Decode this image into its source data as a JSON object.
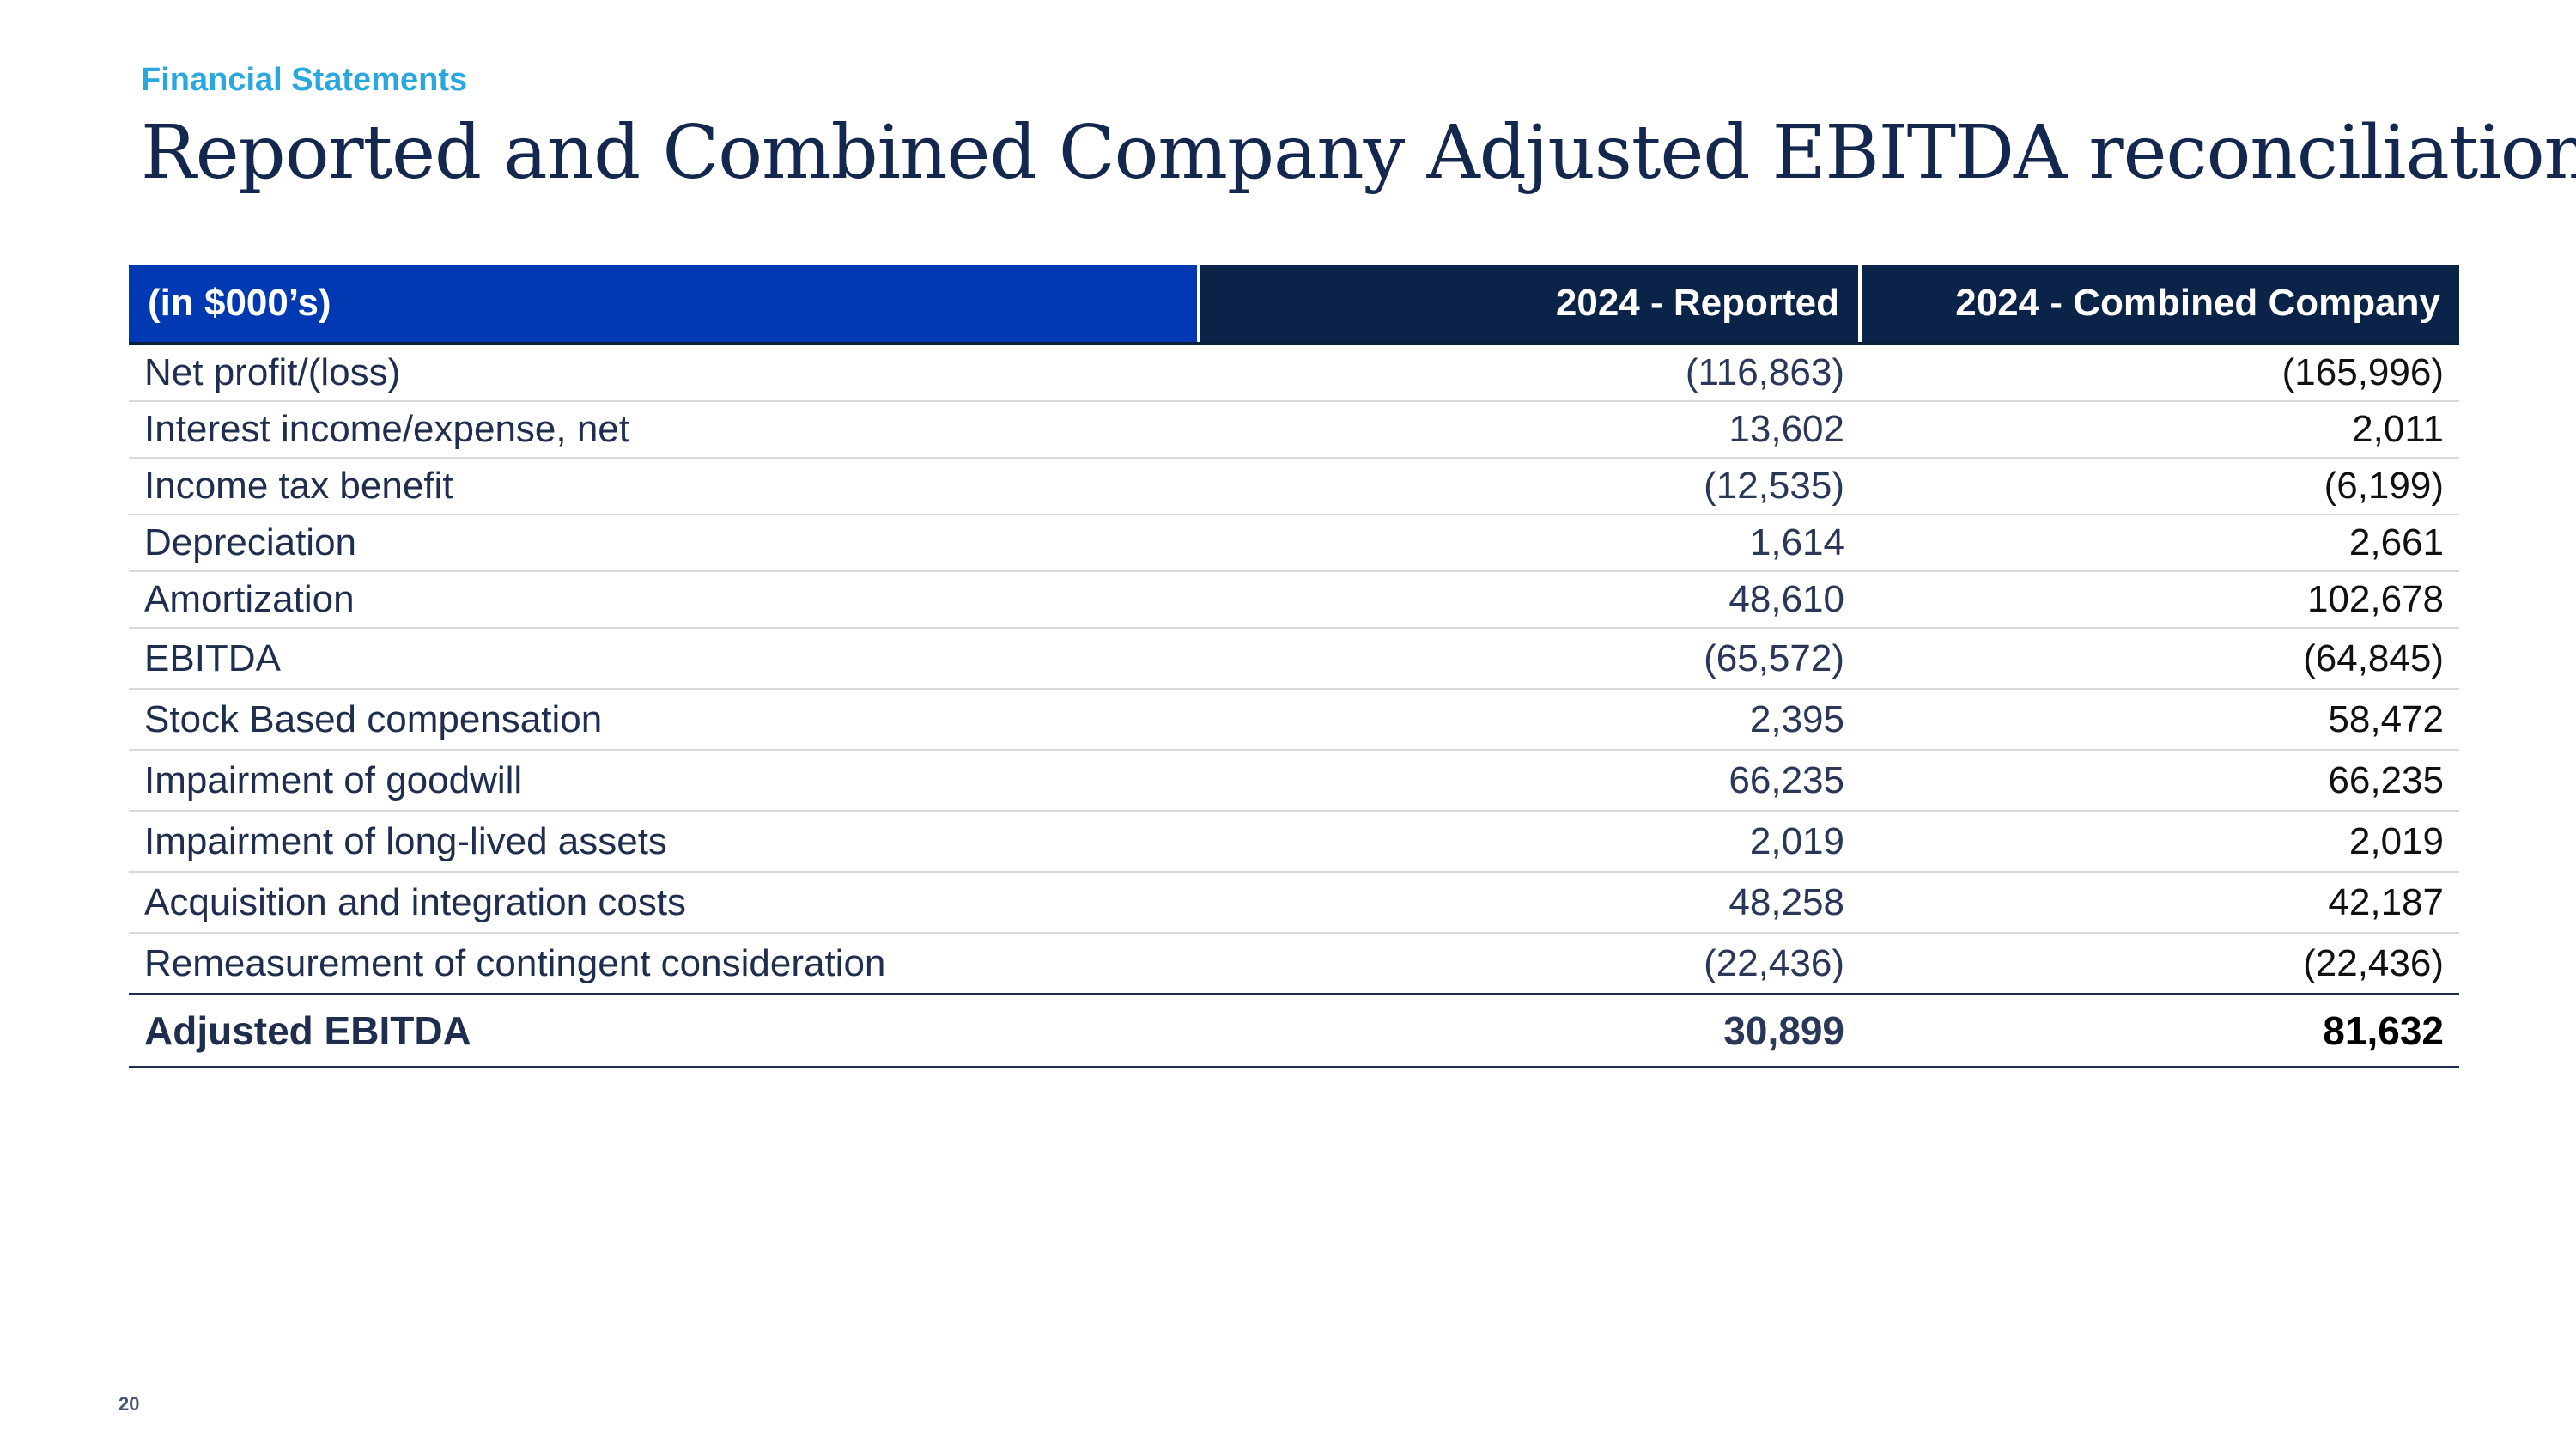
{
  "section_label": "Financial Statements",
  "title": "Reported and Combined Company Adjusted EBITDA reconciliation",
  "table": {
    "headers": [
      "(in $000’s)",
      "2024 - Reported",
      "2024 - Combined Company"
    ],
    "rows": [
      {
        "label": "Net profit/(loss)",
        "reported": "(116,863)",
        "combined": "(165,996)"
      },
      {
        "label": "Interest income/expense, net",
        "reported": "13,602",
        "combined": "2,011"
      },
      {
        "label": "Income tax benefit",
        "reported": "(12,535)",
        "combined": "(6,199)"
      },
      {
        "label": "Depreciation",
        "reported": "1,614",
        "combined": "2,661"
      },
      {
        "label": "Amortization",
        "reported": "48,610",
        "combined": "102,678"
      },
      {
        "label": "EBITDA",
        "reported": "(65,572)",
        "combined": "(64,845)"
      },
      {
        "label": "Stock Based compensation",
        "reported": "2,395",
        "combined": "58,472"
      },
      {
        "label": "Impairment of goodwill",
        "reported": "66,235",
        "combined": "66,235"
      },
      {
        "label": "Impairment of long-lived assets",
        "reported": "2,019",
        "combined": "2,019"
      },
      {
        "label": "Acquisition and integration costs",
        "reported": "48,258",
        "combined": "42,187"
      },
      {
        "label": "Remeasurement of contingent consideration",
        "reported": "(22,436)",
        "combined": "(22,436)"
      }
    ],
    "total": {
      "label": "Adjusted EBITDA",
      "reported": "30,899",
      "combined": "81,632"
    }
  },
  "page_number": "20",
  "colors": {
    "accent_blue": "#29a8e0",
    "header_blue": "#0039b2",
    "header_navy": "#0b2348",
    "title_navy": "#14274e"
  }
}
